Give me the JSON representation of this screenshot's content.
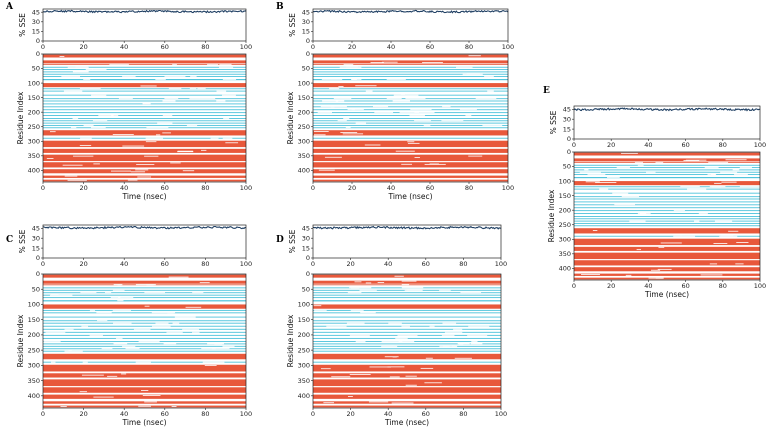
{
  "colors": {
    "sse_line": "#1f3f63",
    "helix": "#e8583b",
    "strand": "#4ec3db",
    "axis": "#222222"
  },
  "chart_data": [
    {
      "panel": "A",
      "type": "line+heatmap",
      "xlabel": "Time (nsec)",
      "ylabel_top": "% SSE",
      "ylabel_bottom": "Residue Index",
      "xlim": [
        0,
        100
      ],
      "x_ticks": [
        "0",
        "20",
        "40",
        "60",
        "80",
        "100"
      ],
      "sse_yticks": [
        "45",
        "30",
        "15",
        "0"
      ],
      "sse_ylim": [
        0,
        50
      ],
      "sse_mean": 46,
      "res_yticks": [
        "0",
        "50",
        "100",
        "150",
        "200",
        "250",
        "300",
        "350",
        "400"
      ],
      "res_ylim": [
        0,
        440
      ]
    },
    {
      "panel": "B",
      "type": "line+heatmap",
      "xlabel": "Time (nsec)",
      "ylabel_top": "% SSE",
      "ylabel_bottom": "Residue Index",
      "xlim": [
        0,
        100
      ],
      "x_ticks": [
        "0",
        "20",
        "40",
        "60",
        "80",
        "100"
      ],
      "sse_yticks": [
        "45",
        "30",
        "15",
        "0"
      ],
      "sse_ylim": [
        0,
        50
      ],
      "sse_mean": 46,
      "res_yticks": [
        "0",
        "50",
        "100",
        "150",
        "200",
        "250",
        "300",
        "350",
        "400"
      ],
      "res_ylim": [
        0,
        440
      ]
    },
    {
      "panel": "C",
      "type": "line+heatmap",
      "xlabel": "Time (nsec)",
      "ylabel_top": "% SSE",
      "ylabel_bottom": "Residue Index",
      "xlim": [
        0,
        100
      ],
      "x_ticks": [
        "0",
        "20",
        "40",
        "60",
        "80",
        "100"
      ],
      "sse_yticks": [
        "45",
        "30",
        "15",
        "0"
      ],
      "sse_ylim": [
        0,
        50
      ],
      "sse_mean": 46,
      "res_yticks": [
        "0",
        "50",
        "100",
        "150",
        "200",
        "250",
        "300",
        "350",
        "400"
      ],
      "res_ylim": [
        0,
        440
      ]
    },
    {
      "panel": "D",
      "type": "line+heatmap",
      "xlabel": "Time (nsec)",
      "ylabel_top": "% SSE",
      "ylabel_bottom": "Residue Index",
      "xlim": [
        0,
        100
      ],
      "x_ticks": [
        "0",
        "20",
        "40",
        "60",
        "80",
        "100"
      ],
      "sse_yticks": [
        "45",
        "30",
        "15",
        "0"
      ],
      "sse_ylim": [
        0,
        50
      ],
      "sse_mean": 46,
      "res_yticks": [
        "0",
        "50",
        "100",
        "150",
        "200",
        "250",
        "300",
        "350",
        "400"
      ],
      "res_ylim": [
        0,
        440
      ]
    },
    {
      "panel": "E",
      "type": "line+heatmap",
      "xlabel": "Time (nsec)",
      "ylabel_top": "% SSE",
      "ylabel_bottom": "Residue Index",
      "xlim": [
        0,
        100
      ],
      "x_ticks": [
        "0",
        "20",
        "40",
        "60",
        "80",
        "100"
      ],
      "sse_yticks": [
        "45",
        "30",
        "15",
        "0"
      ],
      "sse_ylim": [
        0,
        50
      ],
      "sse_mean": 45,
      "res_yticks": [
        "0",
        "50",
        "100",
        "150",
        "200",
        "250",
        "300",
        "350",
        "400"
      ],
      "res_ylim": [
        0,
        440
      ]
    }
  ],
  "residue_bands": [
    {
      "from": 2,
      "to": 12,
      "ss": "helix"
    },
    {
      "from": 22,
      "to": 32,
      "ss": "helix"
    },
    {
      "from": 34,
      "to": 36,
      "ss": "helix"
    },
    {
      "from": 44,
      "to": 47,
      "ss": "strand"
    },
    {
      "from": 52,
      "to": 55,
      "ss": "strand"
    },
    {
      "from": 60,
      "to": 63,
      "ss": "strand"
    },
    {
      "from": 68,
      "to": 71,
      "ss": "strand"
    },
    {
      "from": 76,
      "to": 79,
      "ss": "strand"
    },
    {
      "from": 86,
      "to": 90,
      "ss": "strand"
    },
    {
      "from": 100,
      "to": 114,
      "ss": "helix"
    },
    {
      "from": 118,
      "to": 121,
      "ss": "strand"
    },
    {
      "from": 126,
      "to": 129,
      "ss": "strand"
    },
    {
      "from": 140,
      "to": 143,
      "ss": "strand"
    },
    {
      "from": 152,
      "to": 155,
      "ss": "strand"
    },
    {
      "from": 160,
      "to": 163,
      "ss": "strand"
    },
    {
      "from": 170,
      "to": 173,
      "ss": "strand"
    },
    {
      "from": 180,
      "to": 183,
      "ss": "strand"
    },
    {
      "from": 190,
      "to": 193,
      "ss": "strand"
    },
    {
      "from": 200,
      "to": 203,
      "ss": "strand"
    },
    {
      "from": 210,
      "to": 213,
      "ss": "strand"
    },
    {
      "from": 220,
      "to": 223,
      "ss": "strand"
    },
    {
      "from": 228,
      "to": 231,
      "ss": "strand"
    },
    {
      "from": 236,
      "to": 239,
      "ss": "strand"
    },
    {
      "from": 244,
      "to": 247,
      "ss": "strand"
    },
    {
      "from": 252,
      "to": 255,
      "ss": "strand"
    },
    {
      "from": 262,
      "to": 280,
      "ss": "helix"
    },
    {
      "from": 288,
      "to": 291,
      "ss": "strand"
    },
    {
      "from": 298,
      "to": 320,
      "ss": "helix"
    },
    {
      "from": 326,
      "to": 340,
      "ss": "helix"
    },
    {
      "from": 346,
      "to": 368,
      "ss": "helix"
    },
    {
      "from": 372,
      "to": 390,
      "ss": "helix"
    },
    {
      "from": 396,
      "to": 410,
      "ss": "helix"
    },
    {
      "from": 418,
      "to": 426,
      "ss": "helix"
    },
    {
      "from": 432,
      "to": 438,
      "ss": "helix"
    }
  ]
}
